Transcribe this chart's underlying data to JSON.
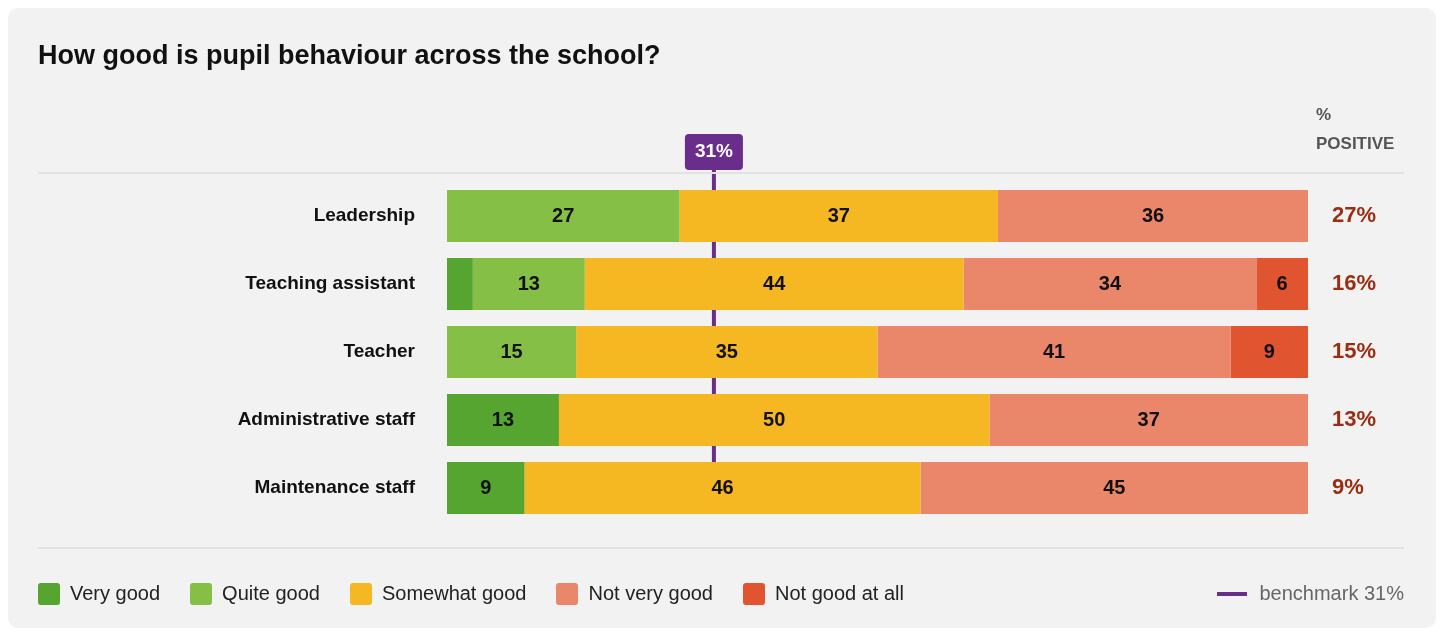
{
  "chart_data": {
    "type": "bar",
    "orientation": "horizontal",
    "stacked": true,
    "title": "How good is pupil behaviour across the school?",
    "categories": [
      "Leadership",
      "Teaching assistant",
      "Teacher",
      "Administrative staff",
      "Maintenance staff"
    ],
    "series": [
      {
        "name": "Very good",
        "color": "#56a530",
        "values": [
          null,
          3,
          null,
          13,
          9
        ],
        "value_labels": [
          null,
          null,
          null,
          "13",
          "9"
        ]
      },
      {
        "name": "Quite good",
        "color": "#86bf45",
        "values": [
          27,
          13,
          15,
          null,
          null
        ],
        "value_labels": [
          "27",
          "13",
          "15",
          null,
          null
        ]
      },
      {
        "name": "Somewhat good",
        "color": "#f5b722",
        "values": [
          37,
          44,
          35,
          50,
          46
        ],
        "value_labels": [
          "37",
          "44",
          "35",
          "50",
          "46"
        ]
      },
      {
        "name": "Not very good",
        "color": "#ea876b",
        "values": [
          36,
          34,
          41,
          37,
          45
        ],
        "value_labels": [
          "36",
          "34",
          "41",
          "37",
          "45"
        ]
      },
      {
        "name": "Not good at all",
        "color": "#e05530",
        "values": [
          null,
          6,
          9,
          null,
          null
        ],
        "value_labels": [
          null,
          "6",
          "9",
          null,
          null
        ]
      }
    ],
    "xlim": [
      0,
      100
    ],
    "tick_labels": "y",
    "legend": "bottom",
    "ref_lines": [
      {
        "axis": "x",
        "value": 31,
        "label": "31%",
        "color": "#6b2d8c"
      }
    ],
    "annotations": [
      "% POSITIVE",
      "benchmark 31%",
      "27%",
      "16%",
      "15%",
      "13%",
      "9%"
    ]
  }
}
